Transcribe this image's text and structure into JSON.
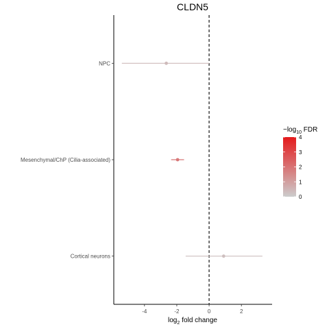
{
  "chart_data": {
    "type": "scatter",
    "title": "CLDN5",
    "xlabel": "fold change",
    "xlabel_prefix": "log",
    "xlabel_sub": "2",
    "ylabel": "",
    "xlim": [
      -5.9,
      3.9
    ],
    "x_ticks": [
      -4,
      -2,
      0,
      2
    ],
    "x_tick_labels": [
      "-4",
      "-2",
      "0",
      "2"
    ],
    "reference_line_x": 0,
    "categories": [
      "NPC",
      "Mesenchymal/ChP (Cilia-associated)",
      "Cortical neurons"
    ],
    "points": [
      {
        "label": "NPC",
        "x": -2.65,
        "ci": [
          -5.4,
          0.0
        ],
        "neg_log10_fdr": 0.4
      },
      {
        "label": "Mesenchymal/ChP (Cilia-associated)",
        "x": -1.95,
        "ci": [
          -2.35,
          -1.55
        ],
        "neg_log10_fdr": 1.9
      },
      {
        "label": "Cortical neurons",
        "x": 0.9,
        "ci": [
          -1.45,
          3.3
        ],
        "neg_log10_fdr": 0.3
      }
    ],
    "legend": {
      "title_minus": "−log",
      "title_sub": "10",
      "title_rest": " FDR",
      "range": [
        0,
        4
      ],
      "ticks": [
        0,
        1,
        2,
        3,
        4
      ],
      "tick_labels": [
        "0",
        "1",
        "2",
        "3",
        "4"
      ],
      "color_low": "#cccccc",
      "color_high": "#e41a1c",
      "placement": "right"
    },
    "grid": false
  }
}
